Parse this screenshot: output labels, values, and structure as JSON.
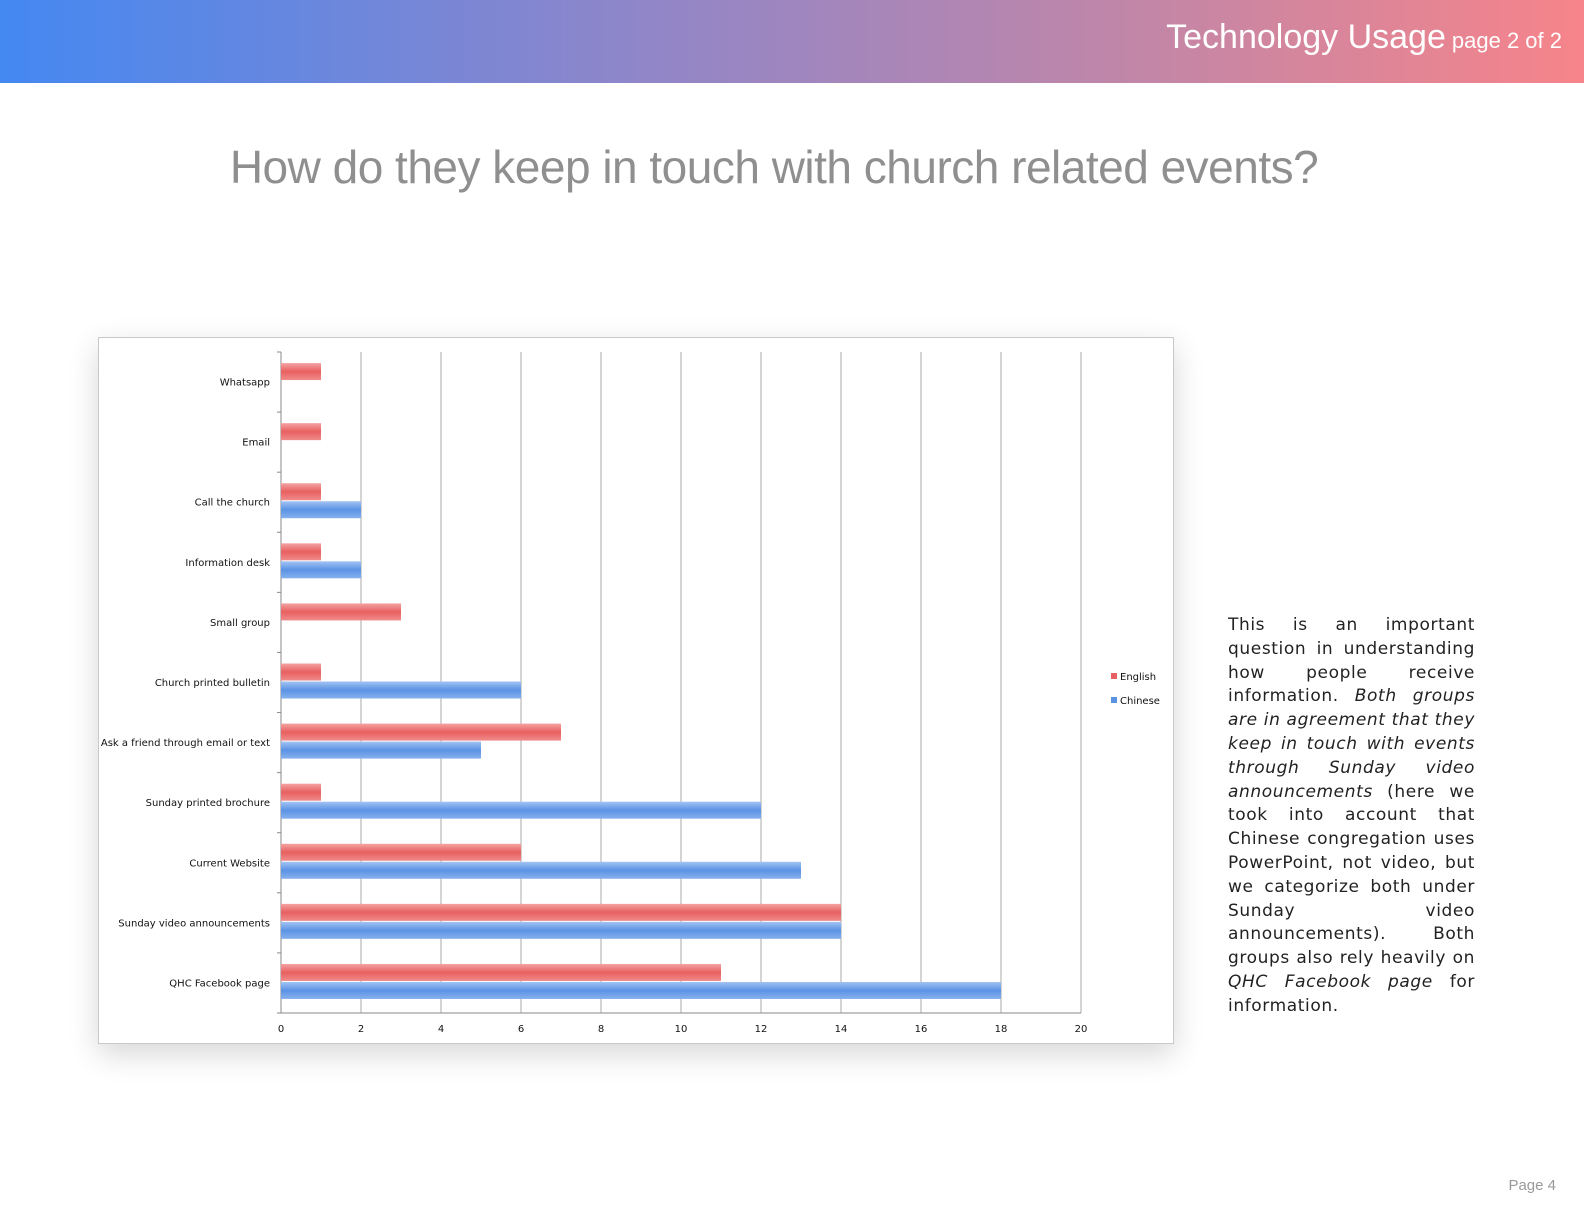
{
  "header": {
    "title": "Technology Usage",
    "subtitle": "page 2 of 2",
    "gradient_colors": [
      "#4488f2",
      "#8f86c9",
      "#c786a4",
      "#f7848a"
    ]
  },
  "page_title": "How do they keep in touch with church related events?",
  "chart_data": {
    "type": "bar",
    "orientation": "horizontal",
    "title": "",
    "xlabel": "",
    "ylabel": "",
    "categories": [
      "Whatsapp",
      "Email",
      "Call the church",
      "Information desk",
      "Small group",
      "Church printed bulletin",
      "Ask a friend through email or text",
      "Sunday printed brochure",
      "Current Website",
      "Sunday video announcements",
      "QHC Facebook page"
    ],
    "series": [
      {
        "name": "English",
        "color": "#e86060",
        "values": [
          1,
          1,
          1,
          1,
          3,
          1,
          7,
          1,
          6,
          14,
          11
        ]
      },
      {
        "name": "Chinese",
        "color": "#5b93e4",
        "values": [
          0,
          0,
          2,
          2,
          0,
          6,
          5,
          12,
          13,
          14,
          18
        ]
      }
    ],
    "xlim": [
      0,
      20
    ],
    "xticks": [
      "0",
      "2",
      "4",
      "6",
      "8",
      "10",
      "12",
      "14",
      "16",
      "18",
      "20"
    ],
    "grid": "vertical",
    "legend": "right"
  },
  "note": {
    "text1": "This is an important question in understanding how people receive information. ",
    "emph1": "Both groups are in agreement that they keep in touch with events through Sunday video announcements",
    "text2": " (here we took into account that Chinese congregation uses PowerPoint, not video, but we categorize both under Sunday video announcements). Both groups also rely heavily on ",
    "emph2": "QHC Facebook page",
    "text3": " for information."
  },
  "page_number": "Page 4"
}
